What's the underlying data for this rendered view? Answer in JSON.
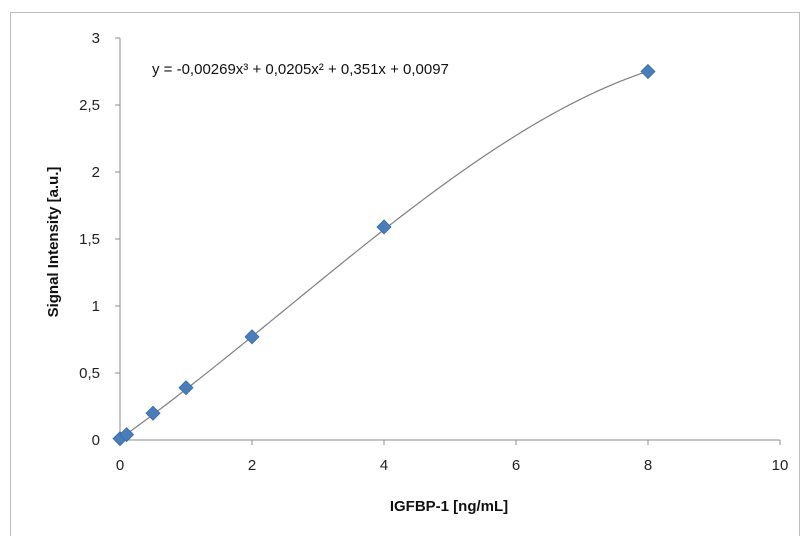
{
  "chart_data": {
    "type": "scatter",
    "title": "",
    "xlabel": "IGFBP-1 [ng/mL]",
    "ylabel": "Signal Intensity [a.u.]",
    "xlim": [
      0,
      10
    ],
    "ylim": [
      0,
      3
    ],
    "x_ticks": [
      "0",
      "2",
      "4",
      "6",
      "8",
      "10"
    ],
    "y_ticks": [
      "0",
      "0,5",
      "1",
      "1,5",
      "2",
      "2,5",
      "3"
    ],
    "grid": false,
    "legend": "none",
    "marker": "diamond",
    "marker_color": "#4a7ebb",
    "trendline_color": "#7f7f7f",
    "series": [
      {
        "x": [
          0,
          0.1,
          0.5,
          1,
          2,
          4,
          8
        ],
        "y": [
          0.01,
          0.04,
          0.2,
          0.39,
          0.77,
          1.59,
          2.75
        ]
      }
    ],
    "trendline": {
      "type": "polynomial",
      "order": 3,
      "coefficients": [
        -0.00269,
        0.0205,
        0.351,
        0.0097
      ],
      "x_range": [
        0,
        8
      ]
    },
    "annotations": {
      "equation_text": "y = -0,00269x³ + 0,0205x² + 0,351x + 0,0097"
    }
  }
}
